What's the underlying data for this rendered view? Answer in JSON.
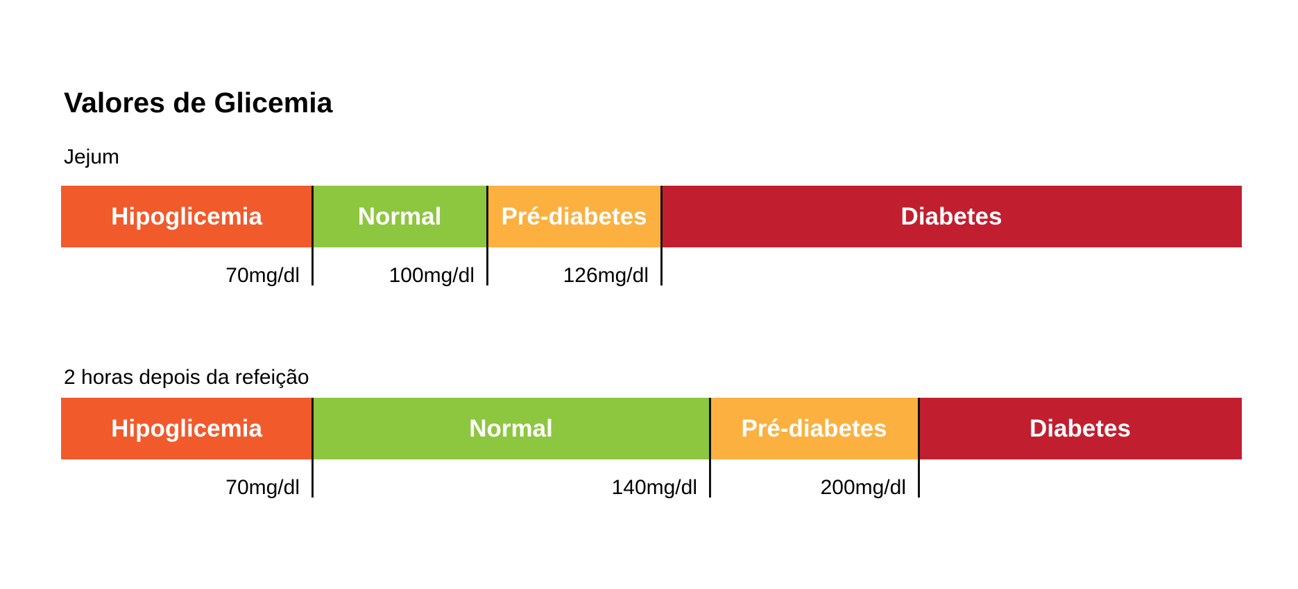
{
  "title": "Valores de Glicemia",
  "colors": {
    "hypoglycemia": "#F15A2B",
    "normal": "#8DC63F",
    "prediabetes": "#FBB040",
    "diabetes": "#C11F2F"
  },
  "fasting": {
    "label": "Jejum",
    "bands": [
      "Hipoglicemia",
      "Normal",
      "Pré-diabetes",
      "Diabetes"
    ],
    "thresholds": [
      "70mg/dl",
      "100mg/dl",
      "126mg/dl"
    ]
  },
  "post_meal": {
    "label": "2 horas depois da refeição",
    "bands": [
      "Hipoglicemia",
      "Normal",
      "Pré-diabetes",
      "Diabetes"
    ],
    "thresholds": [
      "70mg/dl",
      "140mg/dl",
      "200mg/dl"
    ]
  }
}
